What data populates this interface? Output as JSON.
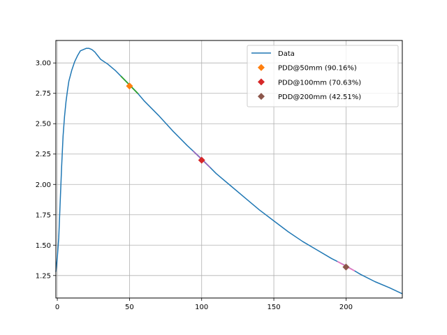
{
  "chart_data": {
    "type": "line",
    "title": "",
    "xlabel": "",
    "ylabel": "",
    "xlim": [
      -1,
      239
    ],
    "ylim": [
      1.065,
      3.185
    ],
    "grid": true,
    "legend_position": "top-right",
    "x_ticks": [
      0,
      50,
      100,
      150,
      200
    ],
    "y_ticks": [
      1.25,
      1.5,
      1.75,
      2.0,
      2.25,
      2.5,
      2.75,
      3.0
    ],
    "x_tick_labels": [
      "0",
      "50",
      "100",
      "150",
      "200"
    ],
    "y_tick_labels": [
      "1.25",
      "1.50",
      "1.75",
      "2.00",
      "2.25",
      "2.50",
      "2.75",
      "3.00"
    ],
    "series": [
      {
        "name": "Data",
        "color": "#1f77b4",
        "x": [
          -1,
          0,
          1,
          2,
          3,
          4,
          5,
          6,
          7,
          8,
          10,
          12,
          14,
          16,
          18,
          20,
          22,
          24,
          26,
          28,
          30,
          35,
          40,
          45,
          50,
          55,
          60,
          70,
          80,
          90,
          100,
          110,
          120,
          130,
          140,
          150,
          160,
          170,
          180,
          190,
          200,
          210,
          220,
          230,
          239
        ],
        "y": [
          1.28,
          1.4,
          1.56,
          1.86,
          2.15,
          2.4,
          2.56,
          2.68,
          2.77,
          2.85,
          2.94,
          3.01,
          3.06,
          3.1,
          3.11,
          3.12,
          3.12,
          3.11,
          3.09,
          3.06,
          3.03,
          2.99,
          2.94,
          2.88,
          2.82,
          2.76,
          2.69,
          2.57,
          2.44,
          2.32,
          2.21,
          2.09,
          1.99,
          1.89,
          1.79,
          1.7,
          1.61,
          1.53,
          1.46,
          1.39,
          1.33,
          1.26,
          1.2,
          1.15,
          1.1
        ]
      }
    ],
    "markers": [
      {
        "name": "PDD@50mm (90.16%)",
        "x": 50,
        "y": 2.81,
        "color": "#ff7f0e",
        "segment_color": "#2ca02c"
      },
      {
        "name": "PDD@100mm (70.63%)",
        "x": 100,
        "y": 2.2,
        "color": "#d62728",
        "segment_color": "#9467bd"
      },
      {
        "name": "PDD@200mm (42.51%)",
        "x": 200,
        "y": 1.32,
        "color": "#8c564b",
        "segment_color": "#e377c2"
      }
    ]
  }
}
